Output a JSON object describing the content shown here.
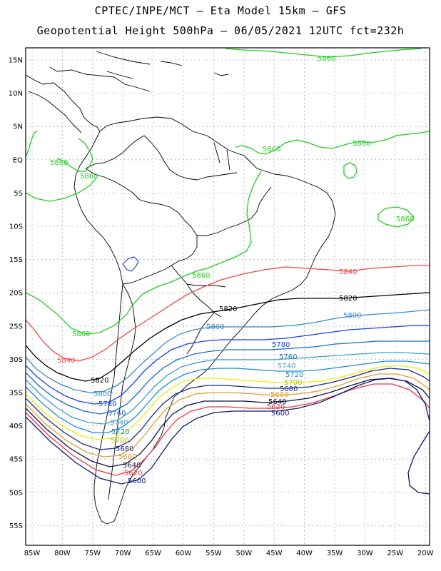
{
  "title_line1": "CPTEC/INPE/MCT –  Eta Model 15km – GFS",
  "title_line2": "Geopotential Height 500hPa – 06/05/2021 12UTC fct=232h",
  "lat_labels": [
    "15N",
    "10N",
    "5N",
    "EQ",
    "5S",
    "10S",
    "15S",
    "20S",
    "25S",
    "30S",
    "35S",
    "40S",
    "45S",
    "50S",
    "55S"
  ],
  "lon_labels": [
    "85W",
    "80W",
    "75W",
    "70W",
    "65W",
    "60W",
    "55W",
    "50W",
    "45W",
    "40W",
    "35W",
    "30W",
    "25W",
    "20W"
  ],
  "contour_labels": {
    "l5860": "5860",
    "l5840": "5840",
    "l5820": "5820",
    "l5800": "5800",
    "l5780": "5780",
    "l5760": "5760",
    "l5740": "5740",
    "l5720": "5720",
    "l5700": "5700",
    "l5680": "5680",
    "l5660": "5660",
    "l5640": "5640",
    "l5620": "5620",
    "l5600": "5600"
  },
  "colors": {
    "c5860": "#22cc22",
    "c5840": "#ee4444",
    "c5820": "#000000",
    "c5800": "#3a8cc8",
    "c5780": "#1a3ef0",
    "c5760": "#1a6ec0",
    "c5740": "#3aa0c8",
    "c5720": "#1a8cd0",
    "c5700": "#eeee00",
    "c5680": "#1a2a80",
    "c5660": "#e0a030",
    "c5640": "#101040",
    "c5620": "#ee3344",
    "c5600": "#0a1a70"
  }
}
